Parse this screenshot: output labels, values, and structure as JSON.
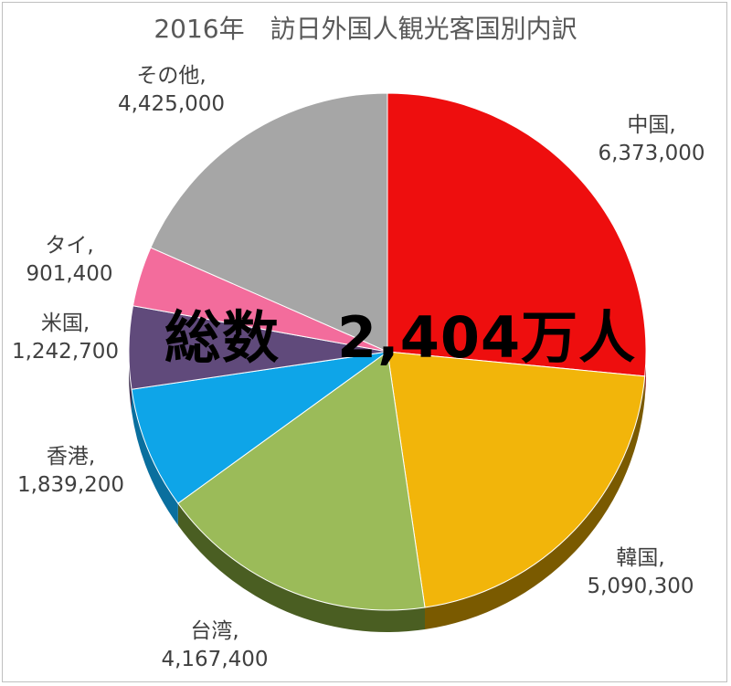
{
  "chart_data": {
    "type": "pie",
    "title": "2016年　訪日外国人観光客国別内訳",
    "center_label": "総数　2,404万人",
    "legend": "none",
    "slices": [
      {
        "name": "中国",
        "label": "中国,",
        "value": 6373000,
        "value_text": "6,373,000",
        "color": "#ee0e0e",
        "side": "#8a0808"
      },
      {
        "name": "韓国",
        "label": "韓国,",
        "value": 5090300,
        "value_text": "5,090,300",
        "color": "#f2b50a",
        "side": "#7a5a00"
      },
      {
        "name": "台湾",
        "label": "台湾,",
        "value": 4167400,
        "value_text": "4,167,400",
        "color": "#9bbb59",
        "side": "#4a5e22"
      },
      {
        "name": "香港",
        "label": "香港,",
        "value": 1839200,
        "value_text": "1,839,200",
        "color": "#0ea5e8",
        "side": "#0a6f9e"
      },
      {
        "name": "米国",
        "label": "米国,",
        "value": 1242700,
        "value_text": "1,242,700",
        "color": "#604a7b",
        "side": "#3b2c4d"
      },
      {
        "name": "タイ",
        "label": "タイ,",
        "value": 901400,
        "value_text": "901,400",
        "color": "#f36c9c",
        "side": "#a23e63"
      },
      {
        "name": "その他",
        "label": "その他,",
        "value": 4425000,
        "value_text": "4,425,000",
        "color": "#a6a6a6",
        "side": "#6b6b6b"
      }
    ]
  }
}
